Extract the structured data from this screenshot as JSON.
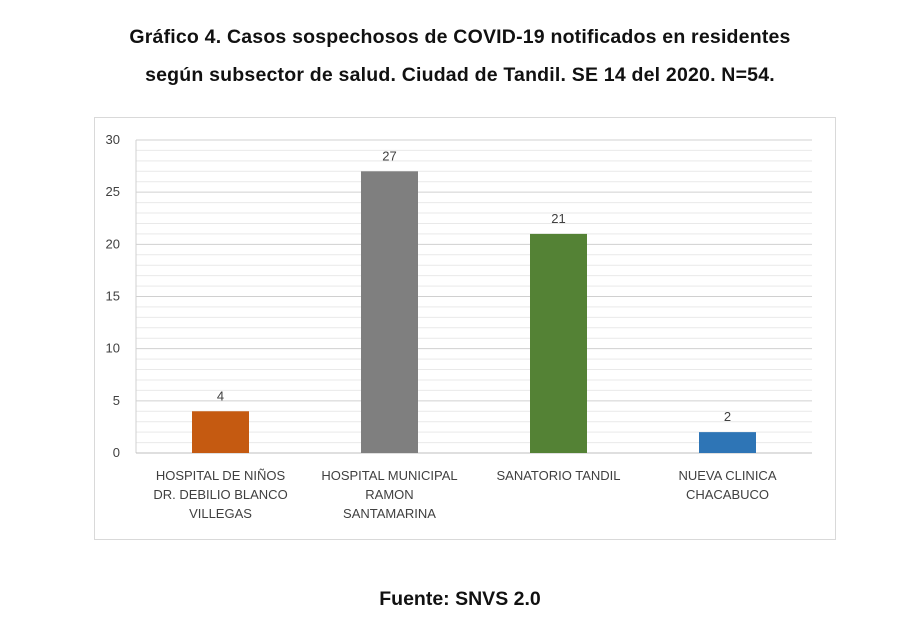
{
  "title_line1": "Gráfico 4. Casos sospechosos de COVID-19 notificados en residentes",
  "title_line2": "según subsector de salud. Ciudad de Tandil. SE 14 del 2020. N=54.",
  "source": "Fuente: SNVS 2.0",
  "chart_data": {
    "type": "bar",
    "categories": [
      [
        "HOSPITAL DE NIÑOS",
        "DR. DEBILIO BLANCO",
        "VILLEGAS"
      ],
      [
        "HOSPITAL MUNICIPAL",
        "RAMON",
        "SANTAMARINA"
      ],
      [
        "SANATORIO TANDIL"
      ],
      [
        "NUEVA CLINICA",
        "CHACABUCO"
      ]
    ],
    "values": [
      4,
      27,
      21,
      2
    ],
    "colors": [
      "#c55a11",
      "#7f7f7f",
      "#548235",
      "#2e75b6"
    ],
    "data_labels": [
      "4",
      "27",
      "21",
      "2"
    ],
    "ylim": [
      0,
      30
    ],
    "yticks": [
      0,
      5,
      10,
      15,
      20,
      25,
      30
    ],
    "grid": true,
    "grid_minor_step": 1,
    "legend": "none"
  }
}
